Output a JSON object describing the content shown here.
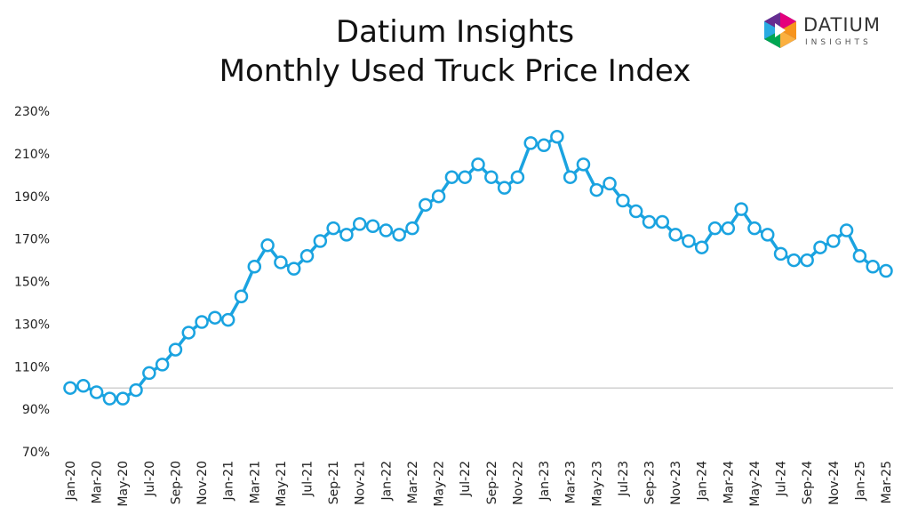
{
  "brand": {
    "name": "DATIUM",
    "sub": "INSIGHTS"
  },
  "chart_data": {
    "type": "line",
    "title": "Datium Insights",
    "subtitle": "Monthly Used Truck Price Index",
    "xlabel": "",
    "ylabel": "",
    "ylim": [
      70,
      230
    ],
    "yticks": [
      "70%",
      "90%",
      "110%",
      "130%",
      "150%",
      "170%",
      "190%",
      "210%",
      "230%"
    ],
    "ytick_values": [
      70,
      90,
      110,
      130,
      150,
      170,
      190,
      210,
      230
    ],
    "reference_line": 100,
    "grid": false,
    "line_color": "#1aa3e0",
    "categories": [
      "Jan-20",
      "Feb-20",
      "Mar-20",
      "Apr-20",
      "May-20",
      "Jun-20",
      "Jul-20",
      "Aug-20",
      "Sep-20",
      "Oct-20",
      "Nov-20",
      "Dec-20",
      "Jan-21",
      "Feb-21",
      "Mar-21",
      "Apr-21",
      "May-21",
      "Jun-21",
      "Jul-21",
      "Aug-21",
      "Sep-21",
      "Oct-21",
      "Nov-21",
      "Dec-21",
      "Jan-22",
      "Feb-22",
      "Mar-22",
      "Apr-22",
      "May-22",
      "Jun-22",
      "Jul-22",
      "Aug-22",
      "Sep-22",
      "Oct-22",
      "Nov-22",
      "Dec-22",
      "Jan-23",
      "Feb-23",
      "Mar-23",
      "Apr-23",
      "May-23",
      "Jun-23",
      "Jul-23",
      "Aug-23",
      "Sep-23",
      "Oct-23",
      "Nov-23",
      "Dec-23",
      "Jan-24",
      "Feb-24",
      "Mar-24",
      "Apr-24",
      "May-24",
      "Jun-24",
      "Jul-24",
      "Aug-24",
      "Sep-24",
      "Oct-24",
      "Nov-24",
      "Dec-24",
      "Jan-25",
      "Feb-25",
      "Mar-25"
    ],
    "tick_labels": [
      "Jan-20",
      "Mar-20",
      "May-20",
      "Jul-20",
      "Sep-20",
      "Nov-20",
      "Jan-21",
      "Mar-21",
      "May-21",
      "Jul-21",
      "Sep-21",
      "Nov-21",
      "Jan-22",
      "Mar-22",
      "May-22",
      "Jul-22",
      "Sep-22",
      "Nov-22",
      "Jan-23",
      "Mar-23",
      "May-23",
      "Jul-23",
      "Sep-23",
      "Nov-23",
      "Jan-24",
      "Mar-24",
      "May-24",
      "Jul-24",
      "Sep-24",
      "Nov-24",
      "Jan-25",
      "Mar-25"
    ],
    "series": [
      {
        "values": [
          100,
          101,
          98,
          95,
          95,
          99,
          107,
          111,
          118,
          126,
          131,
          133,
          132,
          143,
          157,
          167,
          159,
          156,
          162,
          169,
          175,
          172,
          177,
          176,
          174,
          172,
          175,
          186,
          190,
          199,
          199,
          205,
          199,
          194,
          199,
          215,
          214,
          218,
          199,
          205,
          193,
          196,
          188,
          183,
          178,
          178,
          172,
          169,
          166,
          175,
          175,
          184,
          175,
          172,
          163,
          160,
          160,
          166,
          169,
          174,
          162,
          157,
          155
        ]
      }
    ]
  }
}
